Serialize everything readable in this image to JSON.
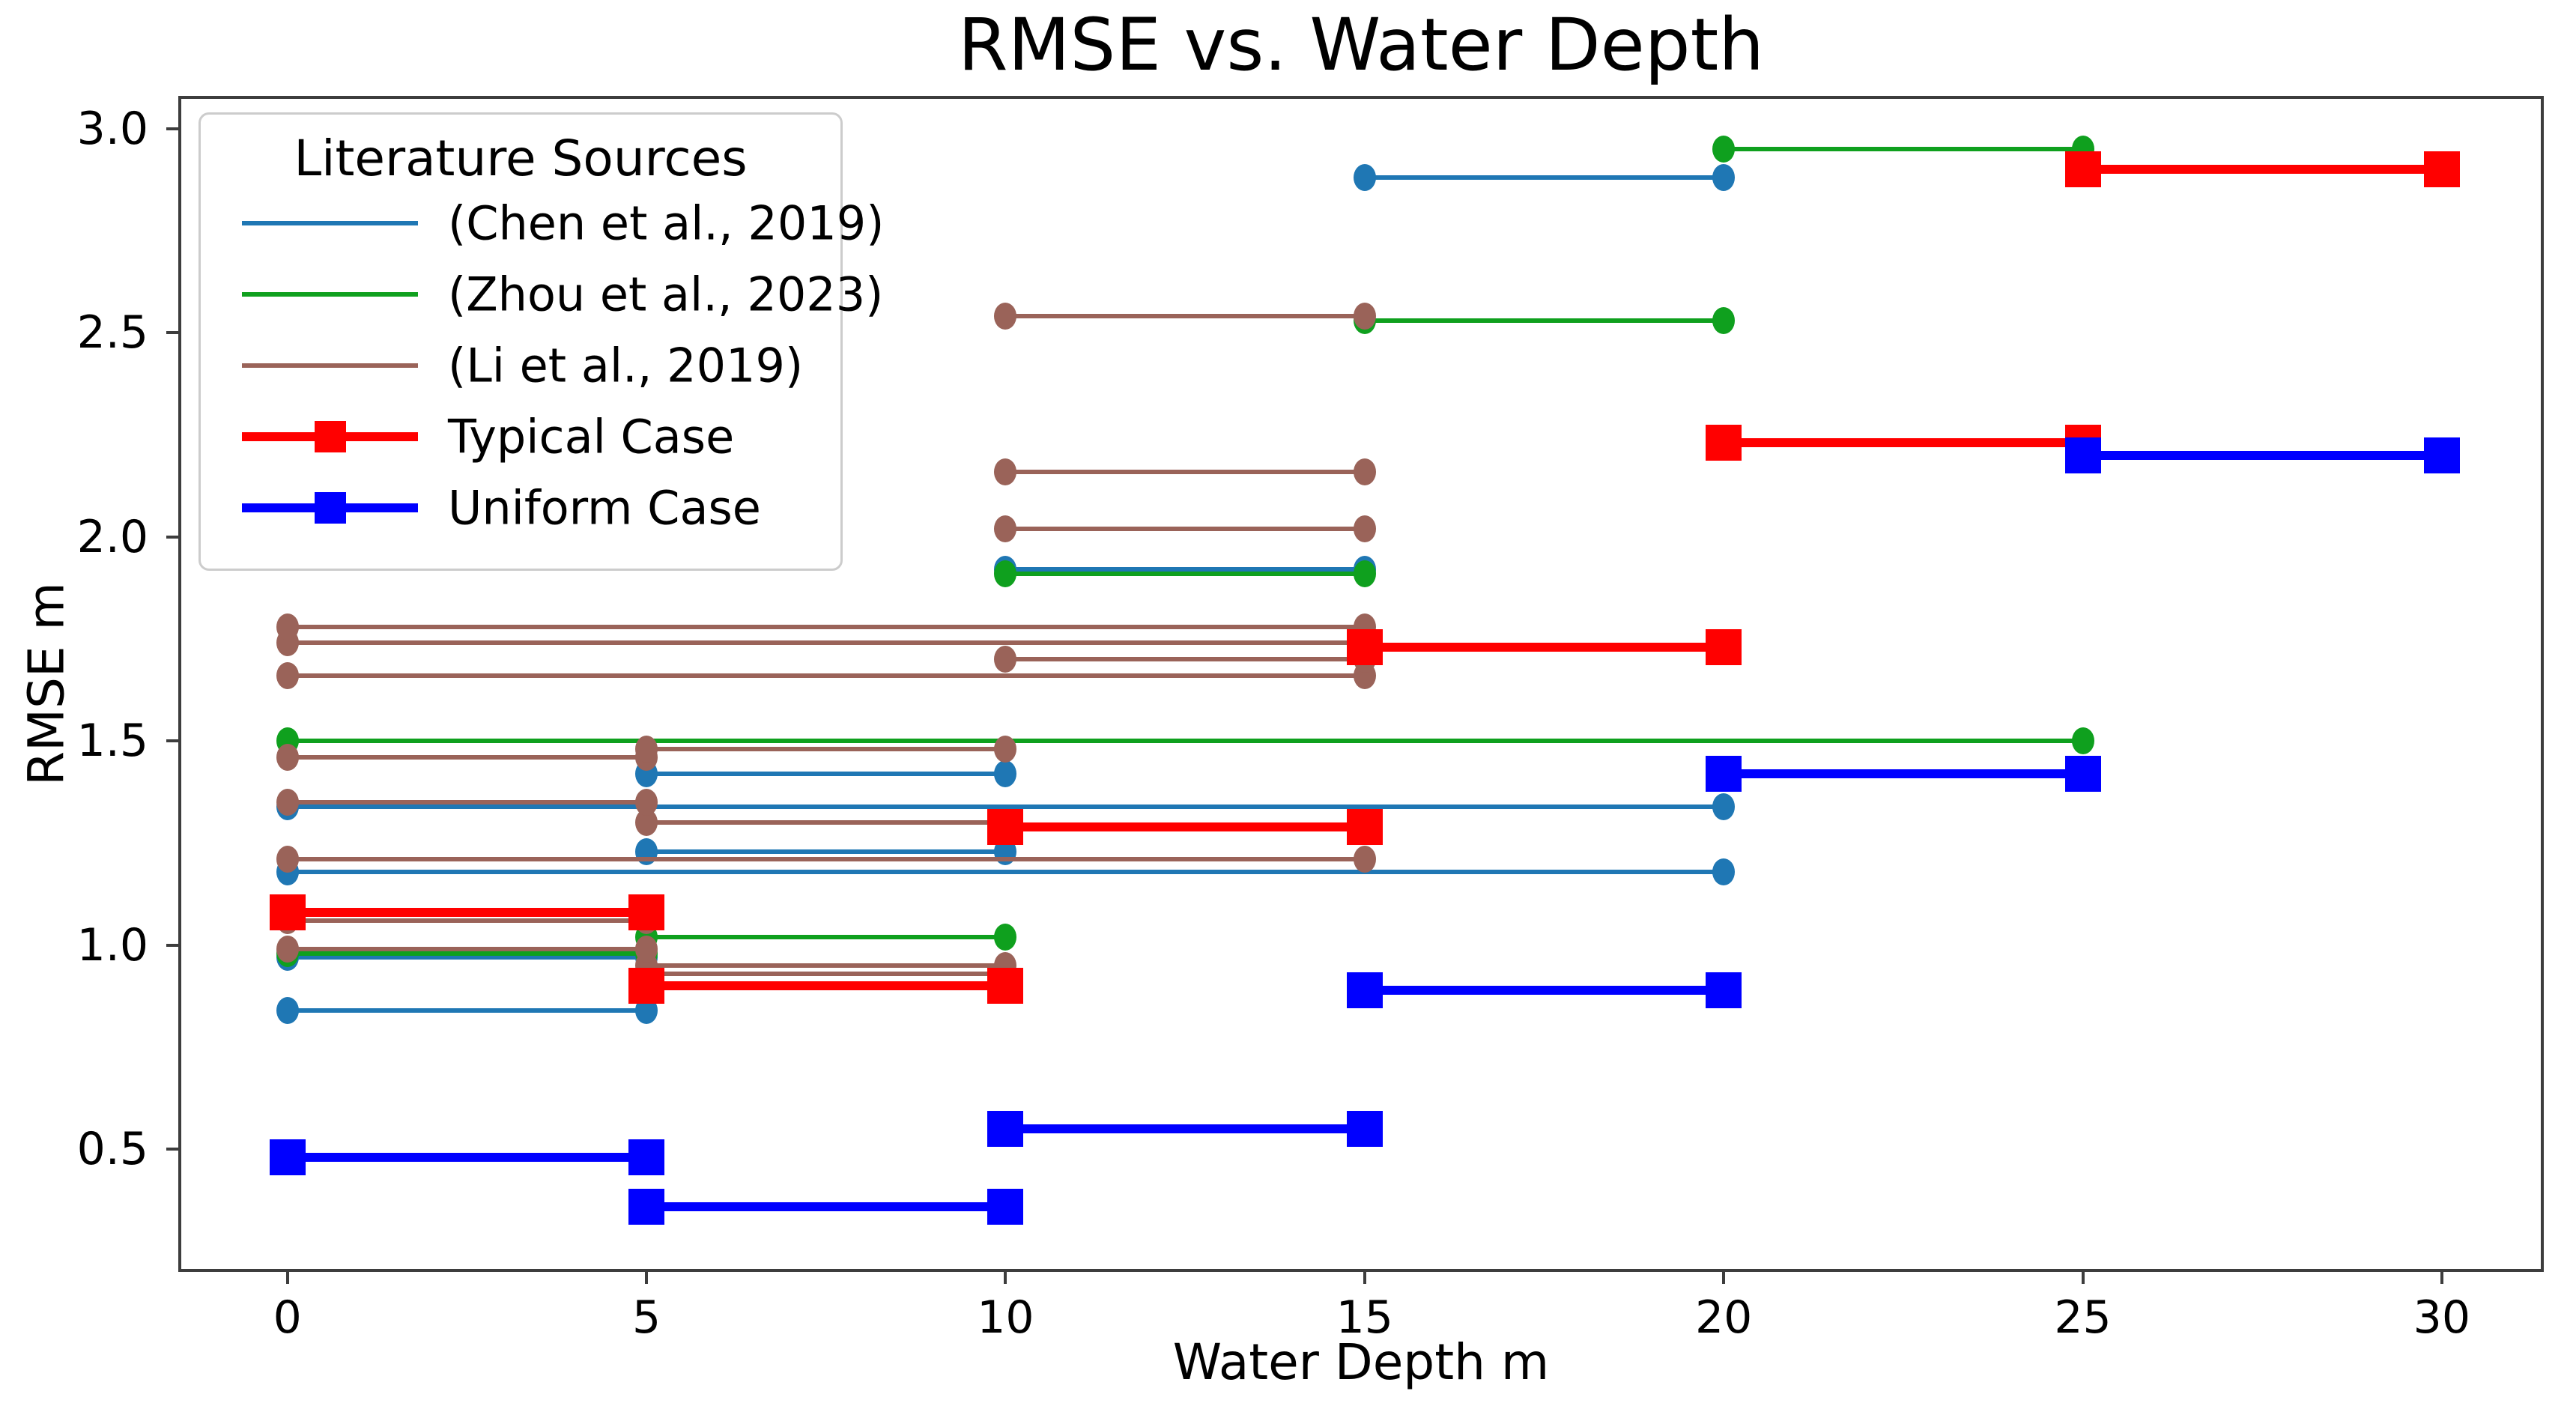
{
  "title": "RMSE vs. Water Depth",
  "axes": {
    "xlabel": "Water Depth m",
    "ylabel": "RMSE m",
    "x_ticks": [
      "0",
      "5",
      "10",
      "15",
      "20",
      "25",
      "30"
    ],
    "y_ticks": [
      "0.5",
      "1.0",
      "1.5",
      "2.0",
      "2.5",
      "3.0"
    ]
  },
  "legend": {
    "title": "Literature Sources"
  },
  "colors": {
    "chen": "#1f77b4",
    "zhou": "#0fa01e",
    "li": "#9a6359",
    "typical": "#ff0000",
    "uniform": "#0000ff",
    "spine": "#3d3d3d"
  },
  "chart_data": {
    "type": "line",
    "title": "RMSE vs. Water Depth",
    "xlabel": "Water Depth m",
    "ylabel": "RMSE m",
    "xlim": [
      -1.52,
      31.42
    ],
    "ylim": [
      0.2,
      3.08
    ],
    "x_tick_values": [
      0,
      5,
      10,
      15,
      20,
      25,
      30
    ],
    "y_tick_values": [
      0.5,
      1.0,
      1.5,
      2.0,
      2.5,
      3.0
    ],
    "grid": false,
    "legend_position": "upper left",
    "series": [
      {
        "name": "(Chen et al., 2019)",
        "color_key": "chen",
        "style": "thin",
        "marker": "circle",
        "segments": [
          {
            "x1": 0,
            "x2": 5,
            "y": 0.84
          },
          {
            "x1": 0,
            "x2": 5,
            "y": 0.97
          },
          {
            "x1": 0,
            "x2": 20,
            "y": 1.18
          },
          {
            "x1": 5,
            "x2": 10,
            "y": 1.23
          },
          {
            "x1": 0,
            "x2": 20,
            "y": 1.34
          },
          {
            "x1": 5,
            "x2": 10,
            "y": 1.42
          },
          {
            "x1": 10,
            "x2": 15,
            "y": 1.92
          },
          {
            "x1": 15,
            "x2": 20,
            "y": 2.88
          }
        ]
      },
      {
        "name": "(Zhou et al., 2023)",
        "color_key": "zhou",
        "style": "thin",
        "marker": "circle",
        "segments": [
          {
            "x1": 0,
            "x2": 5,
            "y": 0.98
          },
          {
            "x1": 5,
            "x2": 10,
            "y": 1.02
          },
          {
            "x1": 0,
            "x2": 25,
            "y": 1.5
          },
          {
            "x1": 10,
            "x2": 15,
            "y": 1.91
          },
          {
            "x1": 15,
            "x2": 20,
            "y": 2.53
          },
          {
            "x1": 20,
            "x2": 25,
            "y": 2.95
          }
        ]
      },
      {
        "name": "(Li et al., 2019)",
        "color_key": "li",
        "style": "thin",
        "marker": "circle",
        "segments": [
          {
            "x1": 5,
            "x2": 10,
            "y": 0.93
          },
          {
            "x1": 5,
            "x2": 10,
            "y": 0.95
          },
          {
            "x1": 0,
            "x2": 5,
            "y": 0.99
          },
          {
            "x1": 0,
            "x2": 5,
            "y": 1.06
          },
          {
            "x1": 0,
            "x2": 15,
            "y": 1.21
          },
          {
            "x1": 5,
            "x2": 10,
            "y": 1.3
          },
          {
            "x1": 0,
            "x2": 5,
            "y": 1.35
          },
          {
            "x1": 0,
            "x2": 5,
            "y": 1.46
          },
          {
            "x1": 5,
            "x2": 10,
            "y": 1.48
          },
          {
            "x1": 0,
            "x2": 15,
            "y": 1.66
          },
          {
            "x1": 10,
            "x2": 15,
            "y": 1.7
          },
          {
            "x1": 0,
            "x2": 15,
            "y": 1.74
          },
          {
            "x1": 0,
            "x2": 15,
            "y": 1.78
          },
          {
            "x1": 10,
            "x2": 15,
            "y": 2.02
          },
          {
            "x1": 10,
            "x2": 15,
            "y": 2.16
          },
          {
            "x1": 10,
            "x2": 15,
            "y": 2.54
          }
        ]
      },
      {
        "name": "Typical Case",
        "color_key": "typical",
        "style": "thick",
        "marker": "square",
        "segments": [
          {
            "x1": 0,
            "x2": 5,
            "y": 1.08
          },
          {
            "x1": 5,
            "x2": 10,
            "y": 0.9
          },
          {
            "x1": 10,
            "x2": 15,
            "y": 1.29
          },
          {
            "x1": 15,
            "x2": 20,
            "y": 1.73
          },
          {
            "x1": 20,
            "x2": 25,
            "y": 2.23
          },
          {
            "x1": 25,
            "x2": 30,
            "y": 2.9
          }
        ]
      },
      {
        "name": "Uniform Case",
        "color_key": "uniform",
        "style": "thick",
        "marker": "square",
        "segments": [
          {
            "x1": 0,
            "x2": 5,
            "y": 0.48
          },
          {
            "x1": 5,
            "x2": 10,
            "y": 0.36
          },
          {
            "x1": 10,
            "x2": 15,
            "y": 0.55
          },
          {
            "x1": 15,
            "x2": 20,
            "y": 0.89
          },
          {
            "x1": 20,
            "x2": 25,
            "y": 1.42
          },
          {
            "x1": 25,
            "x2": 30,
            "y": 2.2
          }
        ]
      }
    ]
  }
}
